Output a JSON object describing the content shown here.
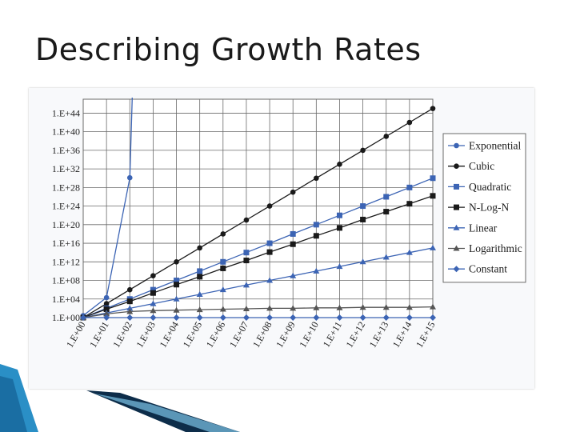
{
  "slide": {
    "title": "Describing Growth Rates"
  },
  "colors": {
    "black_series": "#1a1a1a",
    "blue_series": "#3c64b4",
    "gray_series": "#555555",
    "grid": "#6a6a6a",
    "accent_blue": "#2a8fc6",
    "accent_dark": "#0d2d4a"
  },
  "chart_data": {
    "type": "line",
    "title": "",
    "xlabel": "",
    "ylabel": "",
    "x_scale": "log",
    "y_scale": "log",
    "x": [
      "1.E+00",
      "1.E+01",
      "1.E+02",
      "1.E+03",
      "1.E+04",
      "1.E+05",
      "1.E+06",
      "1.E+07",
      "1.E+08",
      "1.E+09",
      "1.E+10",
      "1.E+11",
      "1.E+12",
      "1.E+13",
      "1.E+14",
      "1.E+15"
    ],
    "y_ticks": [
      "1.E+00",
      "1.E+04",
      "1.E+08",
      "1.E+12",
      "1.E+16",
      "1.E+20",
      "1.E+24",
      "1.E+28",
      "1.E+32",
      "1.E+36",
      "1.E+40",
      "1.E+44"
    ],
    "ylim": [
      "1.E+00",
      "1.E+47"
    ],
    "grid": true,
    "legend_position": "right",
    "series": [
      {
        "name": "Exponential",
        "marker": "circle",
        "color": "#3c64b4",
        "exponents": [
          0.43,
          4.3,
          30.1,
          null,
          null,
          null,
          null,
          null,
          null,
          null,
          null,
          null,
          null,
          null,
          null,
          null
        ]
      },
      {
        "name": "Cubic",
        "marker": "circle",
        "color": "#1a1a1a",
        "exponents": [
          0,
          3,
          6,
          9,
          12,
          15,
          18,
          21,
          24,
          27,
          30,
          33,
          36,
          39,
          42,
          45
        ]
      },
      {
        "name": "Quadratic",
        "marker": "square",
        "color": "#3c64b4",
        "exponents": [
          0,
          2,
          4,
          6,
          8,
          10,
          12,
          14,
          16,
          18,
          20,
          22,
          24,
          26,
          28,
          30
        ]
      },
      {
        "name": "N-Log-N",
        "marker": "square",
        "color": "#1a1a1a",
        "exponents": [
          0,
          1.8,
          3.5,
          5.3,
          7.1,
          8.8,
          10.6,
          12.3,
          14.1,
          15.8,
          17.6,
          19.3,
          21.1,
          22.8,
          24.5,
          26.2
        ]
      },
      {
        "name": "Linear",
        "marker": "triangle",
        "color": "#3c64b4",
        "exponents": [
          0,
          1,
          2,
          3,
          4,
          5,
          6,
          7,
          8,
          9,
          10,
          11,
          12,
          13,
          14,
          15
        ]
      },
      {
        "name": "Logarithmic",
        "marker": "triangle",
        "color": "#555555",
        "exponents": [
          0,
          0.8,
          1.3,
          1.5,
          1.6,
          1.7,
          1.8,
          1.9,
          2.0,
          2.0,
          2.1,
          2.1,
          2.2,
          2.2,
          2.2,
          2.3
        ]
      },
      {
        "name": "Constant",
        "marker": "diamond",
        "color": "#3c64b4",
        "exponents": [
          0,
          0,
          0,
          0,
          0,
          0,
          0,
          0,
          0,
          0,
          0,
          0,
          0,
          0,
          0,
          0
        ]
      }
    ]
  }
}
